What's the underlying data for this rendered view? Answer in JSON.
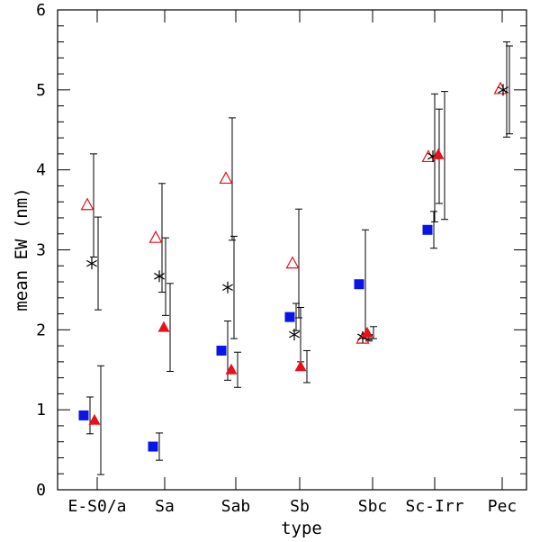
{
  "chart_data": {
    "type": "scatter",
    "title": "",
    "xlabel": "type",
    "ylabel": "mean EW (nm)",
    "categories": [
      "E-S0/a",
      "Sa",
      "Sab",
      "Sb",
      "Sbc",
      "Sc-Irr",
      "Pec"
    ],
    "ylim": [
      0,
      6
    ],
    "yticks": [
      0,
      1,
      2,
      3,
      4,
      5,
      6
    ],
    "series": [
      {
        "name": "open-triangle",
        "marker": "triangle-open",
        "color": "#e8101a",
        "points": [
          {
            "category": "E-S0/a",
            "y": 3.56,
            "err_low": 2.91,
            "err_high": 4.2
          },
          {
            "category": "Sa",
            "y": 3.15,
            "err_low": 2.47,
            "err_high": 3.83
          },
          {
            "category": "Sab",
            "y": 3.89,
            "err_low": 3.12,
            "err_high": 4.65
          },
          {
            "category": "Sb",
            "y": 2.83,
            "err_low": 2.15,
            "err_high": 3.51
          },
          {
            "category": "Sbc",
            "y": 1.89,
            "err_low": 1.86,
            "err_high": 1.93
          },
          {
            "category": "Sc-Irr",
            "y": 4.16,
            "err_low": 3.35,
            "err_high": 4.95
          },
          {
            "category": "Pec",
            "y": 5.01,
            "err_low": 4.41,
            "err_high": 5.6
          }
        ]
      },
      {
        "name": "star",
        "marker": "star",
        "color": "#000000",
        "points": [
          {
            "category": "E-S0/a",
            "y": 2.83,
            "err_low": 2.25,
            "err_high": 3.41
          },
          {
            "category": "Sa",
            "y": 2.67,
            "err_low": 2.18,
            "err_high": 3.15
          },
          {
            "category": "Sab",
            "y": 2.53,
            "err_low": 1.89,
            "err_high": 3.17
          },
          {
            "category": "Sb",
            "y": 1.94,
            "err_low": 1.6,
            "err_high": 2.28
          },
          {
            "category": "Sbc",
            "y": 1.91,
            "err_low": 1.88,
            "err_high": 1.94
          },
          {
            "category": "Sc-Irr",
            "y": 4.17,
            "err_low": 3.58,
            "err_high": 4.76
          },
          {
            "category": "Pec",
            "y": 5.0,
            "err_low": 4.45,
            "err_high": 5.55
          }
        ]
      },
      {
        "name": "filled-square",
        "marker": "square",
        "color": "#0a14e6",
        "points": [
          {
            "category": "E-S0/a",
            "y": 0.93,
            "err_low": 0.7,
            "err_high": 1.16
          },
          {
            "category": "Sa",
            "y": 0.54,
            "err_low": 0.37,
            "err_high": 0.71
          },
          {
            "category": "Sab",
            "y": 1.74,
            "err_low": 1.37,
            "err_high": 2.11
          },
          {
            "category": "Sb",
            "y": 2.16,
            "err_low": 1.99,
            "err_high": 2.33
          },
          {
            "category": "Sbc",
            "y": 2.57,
            "err_low": 1.89,
            "err_high": 3.25
          },
          {
            "category": "Sc-Irr",
            "y": 3.25,
            "err_low": 3.02,
            "err_high": 3.48
          }
        ]
      },
      {
        "name": "filled-triangle",
        "marker": "triangle",
        "color": "#e8101a",
        "points": [
          {
            "category": "E-S0/a",
            "y": 0.87,
            "err_low": 0.19,
            "err_high": 1.55
          },
          {
            "category": "Sa",
            "y": 2.03,
            "err_low": 1.48,
            "err_high": 2.58
          },
          {
            "category": "Sab",
            "y": 1.5,
            "err_low": 1.28,
            "err_high": 1.72
          },
          {
            "category": "Sb",
            "y": 1.54,
            "err_low": 1.34,
            "err_high": 1.74
          },
          {
            "category": "Sbc",
            "y": 1.96,
            "err_low": 1.89,
            "err_high": 2.04
          },
          {
            "category": "Sc-Irr",
            "y": 4.19,
            "err_low": 3.38,
            "err_high": 4.98
          }
        ]
      }
    ]
  }
}
